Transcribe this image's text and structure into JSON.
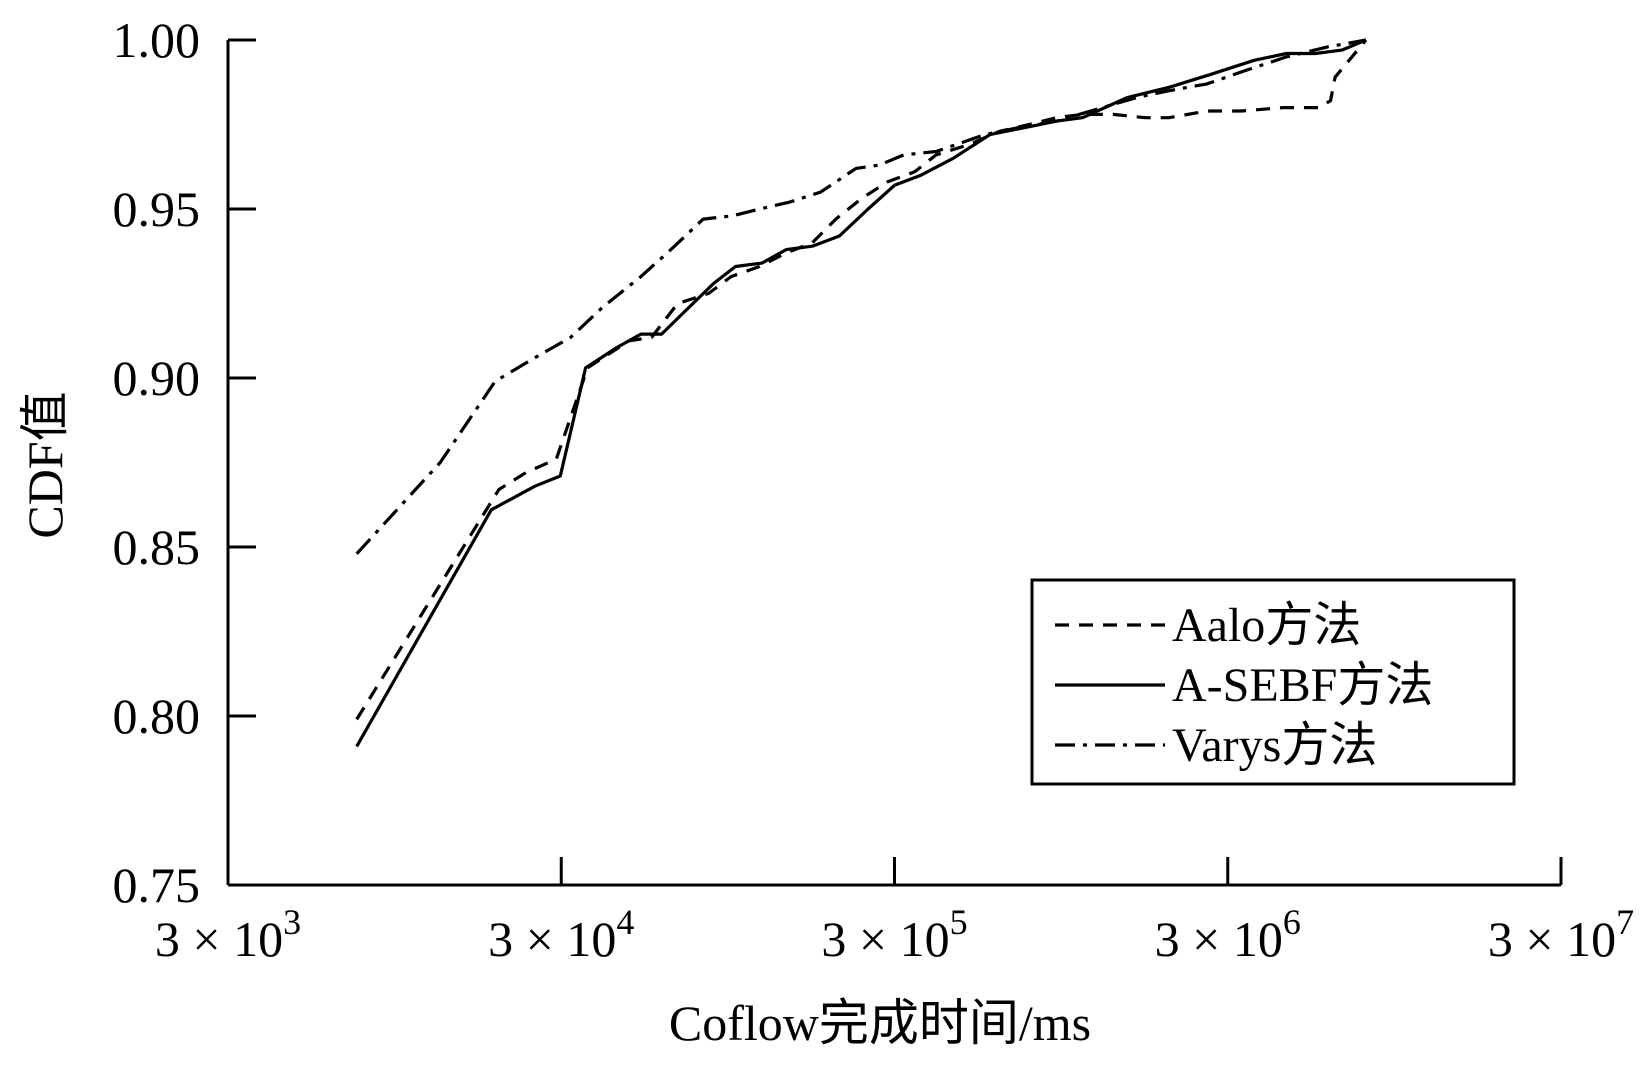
{
  "chart_data": {
    "type": "line",
    "title": "",
    "xlabel": "Coflow完成时间/ms",
    "ylabel": "CDF值",
    "x_scale": "log",
    "xlim": [
      3000,
      30000000
    ],
    "ylim": [
      0.75,
      1.0
    ],
    "x_ticks": [
      {
        "value": 3000,
        "base": "3 × 10",
        "exp": "3"
      },
      {
        "value": 30000,
        "base": "3 × 10",
        "exp": "4"
      },
      {
        "value": 300000,
        "base": "3 × 10",
        "exp": "5"
      },
      {
        "value": 3000000,
        "base": "3 × 10",
        "exp": "6"
      },
      {
        "value": 30000000,
        "base": "3 × 10",
        "exp": "7"
      }
    ],
    "y_ticks": [
      "0.75",
      "0.80",
      "0.85",
      "0.90",
      "0.95",
      "1.00"
    ],
    "grid": false,
    "legend_position": "bottom-right",
    "series": [
      {
        "name": "Aalo方法",
        "style": "dashed",
        "x": [
          7300,
          19500,
          23500,
          29000,
          36000,
          40000,
          48000,
          56000,
          67000,
          83000,
          97000,
          118000,
          142000,
          170000,
          200000,
          238000,
          285000,
          345000,
          400000,
          500000,
          620000,
          760000,
          920000,
          1100000,
          1360000,
          1700000,
          2000000,
          2600000,
          3300000,
          4400000,
          5600000,
          6100000,
          6300000,
          7800000
        ],
        "y": [
          0.799,
          0.867,
          0.872,
          0.876,
          0.903,
          0.906,
          0.911,
          0.912,
          0.922,
          0.925,
          0.93,
          0.933,
          0.937,
          0.94,
          0.947,
          0.953,
          0.958,
          0.961,
          0.966,
          0.969,
          0.973,
          0.975,
          0.977,
          0.978,
          0.978,
          0.977,
          0.977,
          0.979,
          0.979,
          0.98,
          0.98,
          0.982,
          0.989,
          1.0
        ]
      },
      {
        "name": "A-SEBF方法",
        "style": "solid",
        "x": [
          7300,
          18500,
          25000,
          29800,
          35500,
          44000,
          52000,
          60000,
          71000,
          86000,
          100000,
          120000,
          142000,
          170000,
          205000,
          250000,
          300000,
          360000,
          450000,
          580000,
          730000,
          920000,
          1100000,
          1500000,
          2000000,
          2700000,
          3600000,
          4500000,
          5500000,
          6600000,
          7800000
        ],
        "y": [
          0.791,
          0.861,
          0.868,
          0.871,
          0.903,
          0.909,
          0.913,
          0.913,
          0.92,
          0.928,
          0.933,
          0.934,
          0.938,
          0.939,
          0.942,
          0.95,
          0.957,
          0.96,
          0.965,
          0.972,
          0.974,
          0.976,
          0.977,
          0.983,
          0.986,
          0.99,
          0.994,
          0.996,
          0.996,
          0.997,
          1.0
        ]
      },
      {
        "name": "Varys方法",
        "style": "dash-dot",
        "x": [
          7300,
          13000,
          19000,
          25000,
          32000,
          40000,
          52000,
          64000,
          80000,
          98000,
          118000,
          145000,
          180000,
          230000,
          270000,
          320000,
          400000,
          560000,
          700000,
          920000,
          1260000,
          1600000,
          2000000,
          2600000,
          3400000,
          4500000,
          6000000,
          7800000
        ],
        "y": [
          0.848,
          0.875,
          0.899,
          0.906,
          0.912,
          0.921,
          0.93,
          0.938,
          0.947,
          0.948,
          0.95,
          0.952,
          0.955,
          0.962,
          0.963,
          0.966,
          0.967,
          0.972,
          0.974,
          0.976,
          0.98,
          0.983,
          0.985,
          0.987,
          0.991,
          0.995,
          0.998,
          1.0
        ]
      }
    ]
  }
}
